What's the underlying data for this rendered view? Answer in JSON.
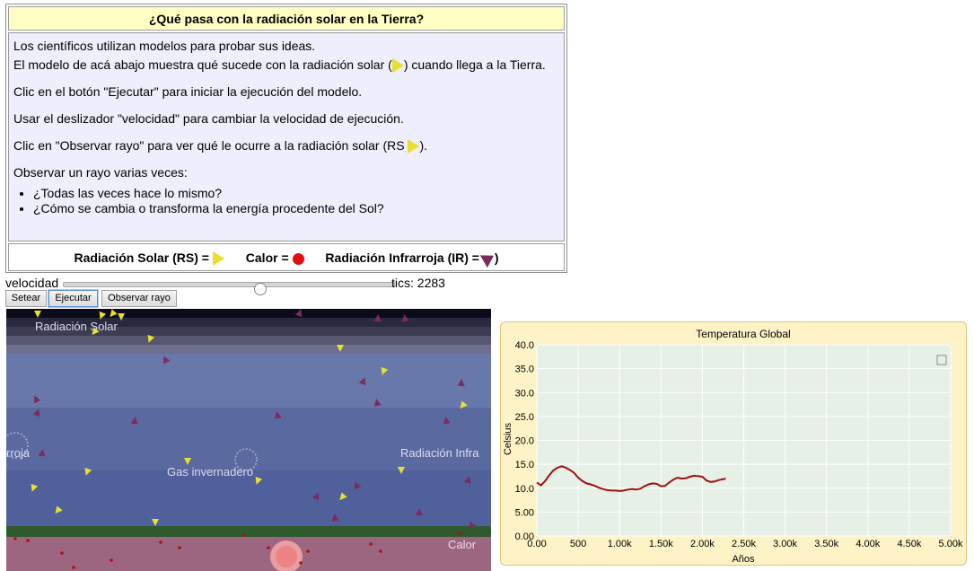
{
  "panel": {
    "title": "¿Qué pasa con la radiación solar en la Tierra?",
    "line1": "Los científicos utilizan modelos para probar sus ideas.",
    "line2_a": "El modelo de acá abajo muestra qué sucede con la radiación solar (",
    "line2_b": ") cuando llega a la Tierra.",
    "line3": "Clic en el botón \"Ejecutar\" para iniciar la ejecución del modelo.",
    "line4": "Usar el deslizador \"velocidad\" para cambiar la velocidad de ejecución.",
    "line5_a": "Clic en \"Observar rayo\" para ver qué le ocurre a la radiación solar (RS ",
    "line5_b": ").",
    "line6": "Observar un rayo varias veces:",
    "bullets": [
      "¿Todas las veces hace lo mismo?",
      "¿Cómo se cambia o transforma la energía procedente del Sol?"
    ],
    "legend": {
      "solar": "Radiación Solar (RS) =",
      "heat": "Calor =",
      "infrared_a": "Radiación Infrarroja (IR) =",
      "infrared_b": ")"
    }
  },
  "controls": {
    "speed_label": "velocidad",
    "speed_value": 0.6,
    "ticks_label": "tics: 2283",
    "buttons": {
      "setup": "Setear",
      "go": "Ejecutar",
      "watch": "Observar rayo"
    }
  },
  "world": {
    "labels": {
      "solar": "Radiación Solar",
      "ir_left": "rroja",
      "ghg": "Gas invernadero",
      "ir_right": "Radiación Infra",
      "heat": "Calor"
    },
    "colors": {
      "sun": "#e8e02c",
      "ir": "#7b2c5e",
      "heat": "#b01010",
      "ground": "#2e5a2e",
      "earth": "#9c6680"
    }
  },
  "chart_data": {
    "type": "line",
    "title": "Temperatura Global",
    "xlabel": "Años",
    "ylabel": "Celsius",
    "xlim": [
      0,
      5000
    ],
    "ylim": [
      0,
      40
    ],
    "x_ticks": [
      "0.00",
      "500",
      "1.00k",
      "1.50k",
      "2.00k",
      "2.50k",
      "3.00k",
      "3.50k",
      "4.00k",
      "4.50k",
      "5.00k"
    ],
    "y_ticks": [
      "0.00",
      "5.00",
      "10.0",
      "15.0",
      "20.0",
      "25.0",
      "30.0",
      "35.0",
      "40.0"
    ],
    "grid": true,
    "series": [
      {
        "color": "#a01010",
        "x": [
          0,
          50,
          100,
          150,
          200,
          250,
          300,
          350,
          400,
          450,
          500,
          550,
          600,
          650,
          700,
          750,
          800,
          850,
          900,
          950,
          1000,
          1050,
          1100,
          1150,
          1200,
          1250,
          1300,
          1350,
          1400,
          1450,
          1500,
          1550,
          1600,
          1650,
          1700,
          1750,
          1800,
          1850,
          1900,
          1950,
          2000,
          2050,
          2100,
          2150,
          2200,
          2283
        ],
        "y": [
          11.2,
          10.6,
          11.5,
          12.7,
          13.7,
          14.3,
          14.6,
          14.3,
          13.8,
          13.2,
          12.2,
          11.5,
          11.0,
          10.8,
          10.5,
          10.1,
          9.8,
          9.6,
          9.5,
          9.5,
          9.4,
          9.5,
          9.7,
          9.8,
          9.7,
          9.9,
          10.4,
          10.8,
          11.0,
          10.9,
          10.4,
          10.5,
          11.2,
          11.8,
          12.2,
          12.0,
          12.1,
          12.4,
          12.6,
          12.5,
          12.4,
          11.6,
          11.3,
          11.4,
          11.7,
          12.0
        ]
      }
    ]
  }
}
